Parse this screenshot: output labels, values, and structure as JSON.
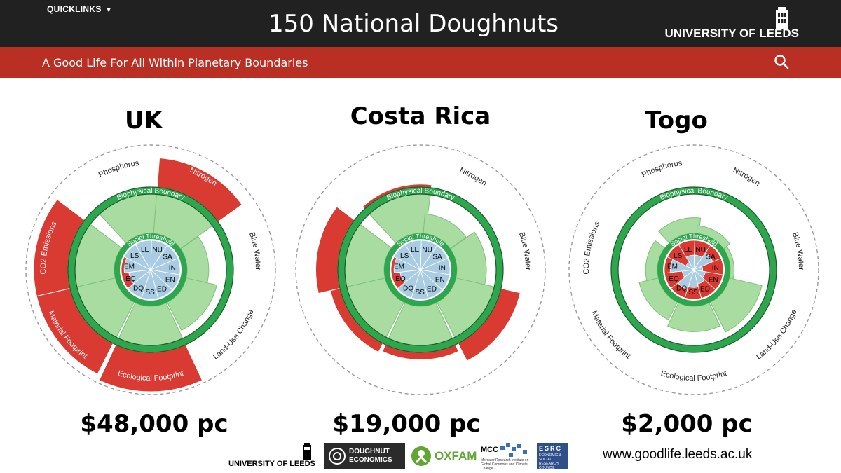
{
  "header": {
    "quicklinks_label": "QUICKLINKS",
    "title": "150 National Doughnuts",
    "logo_text": "UNIVERSITY OF LEEDS",
    "tagline": "A Good Life For All Within Planetary Boundaries"
  },
  "colors": {
    "topbar": "#212121",
    "brand_red": "#b92f24",
    "overshoot_red": "#d93a32",
    "boundary_green": "#2ea64e",
    "safe_green": "#a8dca0",
    "social_blue": "#a9cce3",
    "ring_dark": "#1a5b2c"
  },
  "doughnut_labels": {
    "biophysical": "Biophysical Boundary",
    "social": "Social Threshold",
    "indicators": [
      "Phosphorus",
      "Nitrogen",
      "Blue Water",
      "Land-Use Change",
      "Ecological Footprint",
      "Material Footprint",
      "CO2 Emissions"
    ],
    "social_codes": [
      "NU",
      "SA",
      "IN",
      "EN",
      "ED",
      "SS",
      "DQ",
      "EQ",
      "EM",
      "LS",
      "LE"
    ]
  },
  "countries": [
    {
      "name": "UK",
      "income": "$48,000 pc",
      "biophysical": [
        1.0,
        1.6,
        0.55,
        0.8,
        1.8,
        1.7,
        1.7
      ],
      "social": [
        1.0,
        1.0,
        1.0,
        1.0,
        1.0,
        1.0,
        1.0,
        0.75,
        0.9,
        1.0,
        1.0
      ]
    },
    {
      "name": "Costa Rica",
      "income": "$19,000 pc",
      "biophysical": [
        1.06,
        0.5,
        0.75,
        1.4,
        1.15,
        1.2,
        1.45
      ],
      "social": [
        1.0,
        1.0,
        1.0,
        1.0,
        1.0,
        1.0,
        1.0,
        0.7,
        0.9,
        1.0,
        1.0
      ]
    },
    {
      "name": "Togo",
      "income": "$2,000 pc",
      "biophysical": [
        0.4,
        0.2,
        0.1,
        0.85,
        0.65,
        0.5,
        0.3
      ],
      "social": [
        0.5,
        0.7,
        0.3,
        0.4,
        0.5,
        0.6,
        0.7,
        0.4,
        0.8,
        0.3,
        0.5
      ]
    }
  ],
  "footer": {
    "url": "www.goodlife.leeds.ac.uk",
    "partners": [
      {
        "name": "UNIVERSITY OF LEEDS"
      },
      {
        "name": "DOUGHNUT ECONOMICS"
      },
      {
        "name": "OXFAM"
      },
      {
        "name": "MCC",
        "subtitle": "Mercator Research Institute on Global Commons and Climate Change"
      },
      {
        "name": "ESRC",
        "subtitle": "ECONOMIC & SOCIAL RESEARCH COUNCIL"
      }
    ]
  }
}
